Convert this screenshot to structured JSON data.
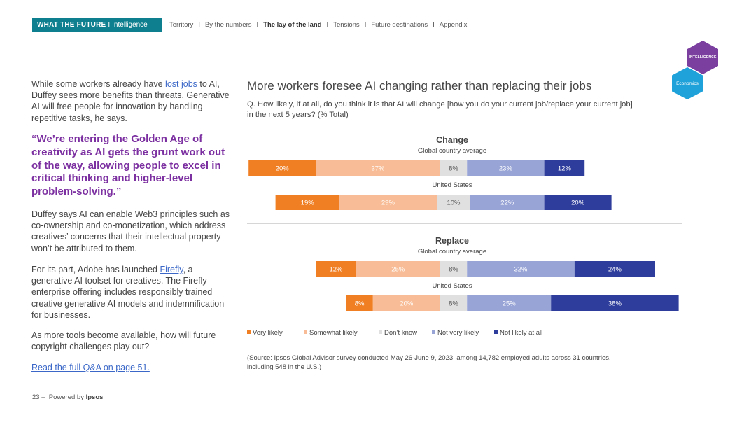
{
  "header": {
    "brand_bold": "WHAT THE FUTURE",
    "brand_sep": "I",
    "brand_light": "Intelligence",
    "nav": [
      {
        "label": "Territory",
        "active": false
      },
      {
        "label": "By the numbers",
        "active": false
      },
      {
        "label": "The lay of the land",
        "active": true
      },
      {
        "label": "Tensions",
        "active": false
      },
      {
        "label": "Future destinations",
        "active": false
      },
      {
        "label": "Appendix",
        "active": false
      }
    ],
    "nav_divider": "I"
  },
  "badges": {
    "intelligence": "INTELLIGENCE",
    "economics": "Economics"
  },
  "left": {
    "p1_before": "While some workers already have ",
    "p1_link": "lost jobs",
    "p1_after": " to AI, Duffey sees more benefits than threats. Generative AI will free people for innovation by handling repetitive tasks, he says.",
    "quote": "“We’re entering the Golden Age of creativity as AI gets the grunt work out of the way, allowing people to excel in critical thinking and higher-level problem-solving.”",
    "p2": "Duffey says AI can enable Web3 principles such as co-ownership and co-monetization, which address creatives’ concerns that their intellectual property won’t be attributed to them.",
    "p3_before": "For its part, Adobe has launched ",
    "p3_link": "Firefly",
    "p3_after": ", a generative AI toolset for creatives. The Firefly enterprise offering includes responsibly trained creative generative AI models and indemnification for businesses.",
    "p4": "As more tools become available, how will future copyright challenges play out?",
    "read_more": "Read the full Q&A on page 51."
  },
  "footer": {
    "page": "23 –",
    "powered": "Powered by",
    "brand": "Ipsos"
  },
  "chart_data": {
    "type": "bar",
    "orientation": "horizontal-stacked",
    "title": "More workers foresee AI changing rather than replacing their jobs",
    "question": "Q. How likely, if at all, do you think it is that AI will change [how you do your current job/replace your current job] in the next 5 years? (% Total)",
    "legend_position": "bottom",
    "series": [
      {
        "name": "Very likely",
        "color": "#f07f24"
      },
      {
        "name": "Somewhat likely",
        "color": "#f8bd96"
      },
      {
        "name": "Don’t know",
        "color": "#e0e0e0"
      },
      {
        "name": "Not very likely",
        "color": "#98a4d6"
      },
      {
        "name": "Not likely at all",
        "color": "#2e3d9c"
      }
    ],
    "groups": [
      {
        "title": "Change",
        "rows": [
          {
            "label": "Global country average",
            "values": [
              20,
              37,
              8,
              23,
              12
            ]
          },
          {
            "label": "United States",
            "values": [
              19,
              29,
              10,
              22,
              20
            ]
          }
        ]
      },
      {
        "title": "Replace",
        "rows": [
          {
            "label": "Global country average",
            "values": [
              12,
              25,
              8,
              32,
              24
            ]
          },
          {
            "label": "United States",
            "values": [
              8,
              20,
              8,
              25,
              38
            ]
          }
        ]
      }
    ],
    "source": "(Source: Ipsos Global Advisor survey conducted May 26-June 9, 2023, among 14,782 employed adults across 31 countries, including 548 in the U.S.)"
  }
}
